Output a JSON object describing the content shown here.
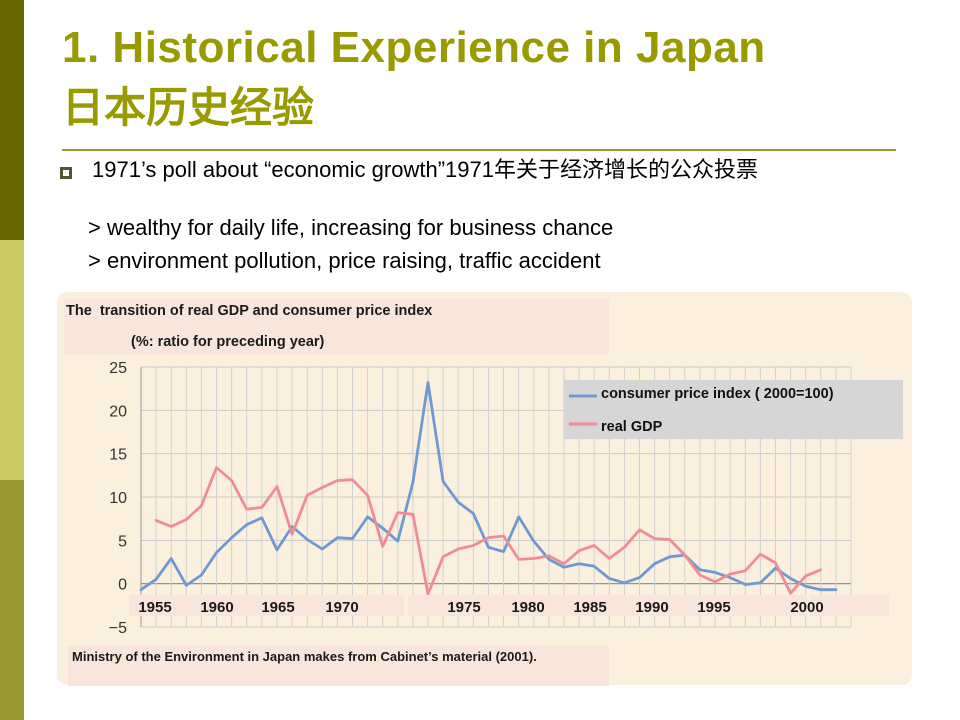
{
  "slide": {
    "title": "1. Historical Experience in Japan",
    "title_cn": "日本历史经验",
    "bullet": "1971’s poll about “economic growth”1971年关于经济增长的公众投票",
    "sub_points": [
      "> wealthy for daily life, increasing for business chance",
      "> environment pollution, price raising, traffic accident"
    ],
    "colors": {
      "title": "#999900",
      "accent_dark": "#666600",
      "accent_light": "#cccc66",
      "panel": "#fbf0de"
    }
  },
  "chart_data": {
    "type": "line",
    "title": "The  transition of real GDP and consumer price index",
    "subtitle": "(%: ratio for preceding year)",
    "source": "Ministry  of the Environment in Japan makes from Cabinet’s  material (2001).",
    "xlim": [
      1955,
      2002
    ],
    "ylim": [
      -5,
      25
    ],
    "yticks": [
      -5,
      0,
      5,
      10,
      15,
      20,
      25
    ],
    "xtick_labels": [
      "1955",
      "1960",
      "1965",
      "1970",
      "1975",
      "1980",
      "1985",
      "1990",
      "1995",
      "2000"
    ],
    "grid": true,
    "legend_position": "top-right",
    "series": [
      {
        "name": "consumer price index ( 2000=100)",
        "color": "#6e99d2",
        "x": [
          1955,
          1956,
          1957,
          1958,
          1959,
          1960,
          1961,
          1962,
          1963,
          1964,
          1965,
          1966,
          1967,
          1968,
          1969,
          1970,
          1971,
          1972,
          1973,
          1974,
          1975,
          1976,
          1977,
          1978,
          1979,
          1980,
          1981,
          1982,
          1983,
          1984,
          1985,
          1986,
          1987,
          1988,
          1989,
          1990,
          1991,
          1992,
          1993,
          1994,
          1995,
          1996,
          1997,
          1998,
          1999,
          2000,
          2001
        ],
        "values": [
          -0.7,
          0.5,
          2.9,
          -0.2,
          1.0,
          3.6,
          5.3,
          6.8,
          7.6,
          3.9,
          6.6,
          5.1,
          4.0,
          5.3,
          5.2,
          7.7,
          6.4,
          4.9,
          11.7,
          23.2,
          11.8,
          9.4,
          8.1,
          4.2,
          3.7,
          7.7,
          4.9,
          2.8,
          1.9,
          2.3,
          2.0,
          0.6,
          0.1,
          0.7,
          2.3,
          3.1,
          3.3,
          1.6,
          1.3,
          0.7,
          -0.1,
          0.1,
          1.8,
          0.6,
          -0.3,
          -0.7,
          -0.7
        ]
      },
      {
        "name": "real GDP",
        "color": "#f08c96",
        "x": [
          1956,
          1957,
          1958,
          1959,
          1960,
          1961,
          1962,
          1963,
          1964,
          1965,
          1966,
          1967,
          1968,
          1969,
          1970,
          1971,
          1972,
          1973,
          1974,
          1975,
          1976,
          1977,
          1978,
          1979,
          1980,
          1981,
          1982,
          1983,
          1984,
          1985,
          1986,
          1987,
          1988,
          1989,
          1990,
          1991,
          1992,
          1993,
          1994,
          1995,
          1996,
          1997,
          1998,
          1999,
          2000
        ],
        "values": [
          7.3,
          6.6,
          7.4,
          9.0,
          13.4,
          11.9,
          8.6,
          8.8,
          11.2,
          5.7,
          10.2,
          11.1,
          11.9,
          12.0,
          10.2,
          4.3,
          8.2,
          8.0,
          -1.2,
          3.1,
          4.0,
          4.4,
          5.3,
          5.5,
          2.8,
          2.9,
          3.2,
          2.3,
          3.8,
          4.4,
          2.9,
          4.2,
          6.2,
          5.2,
          5.1,
          3.3,
          1.0,
          0.2,
          1.1,
          1.5,
          3.4,
          2.4,
          -1.1,
          0.9,
          1.6
        ]
      }
    ]
  }
}
